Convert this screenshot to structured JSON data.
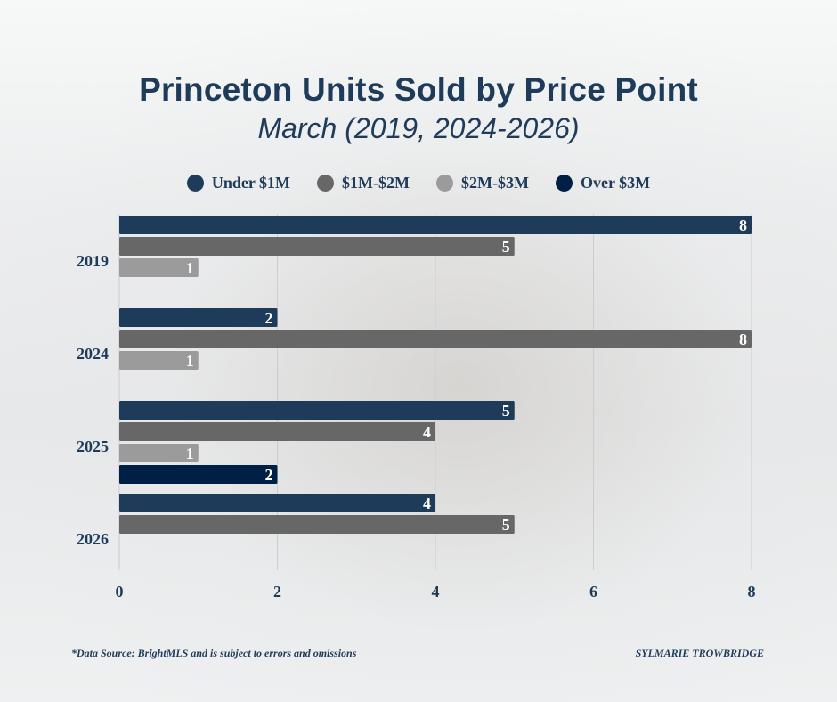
{
  "header": {
    "title": "Princeton Units Sold by Price Point",
    "subtitle": "March (2019, 2024-2026)"
  },
  "footer": {
    "source": "*Data Source: BrightMLS and is subject to errors and omissions",
    "author": "SYLMARIE TROWBRIDGE"
  },
  "chart_data": {
    "type": "bar",
    "orientation": "horizontal",
    "title": "Princeton Units Sold by Price Point",
    "subtitle": "March (2019, 2024-2026)",
    "categories": [
      "2019",
      "2024",
      "2025",
      "2026"
    ],
    "series": [
      {
        "name": "Under $1M",
        "color": "#1f3b5a",
        "values": [
          8,
          2,
          5,
          4
        ]
      },
      {
        "name": "$1M-$2M",
        "color": "#676767",
        "values": [
          5,
          8,
          4,
          5
        ]
      },
      {
        "name": "$2M-$3M",
        "color": "#9b9b9b",
        "values": [
          1,
          1,
          1,
          null
        ]
      },
      {
        "name": "Over $3M",
        "color": "#001f45",
        "values": [
          null,
          null,
          2,
          null
        ]
      }
    ],
    "xlabel": "",
    "ylabel": "",
    "xlim": [
      0,
      8
    ],
    "xticks": [
      "0",
      "2",
      "4",
      "6",
      "8"
    ],
    "grid": true,
    "legend_position": "top",
    "data_labels": true
  }
}
